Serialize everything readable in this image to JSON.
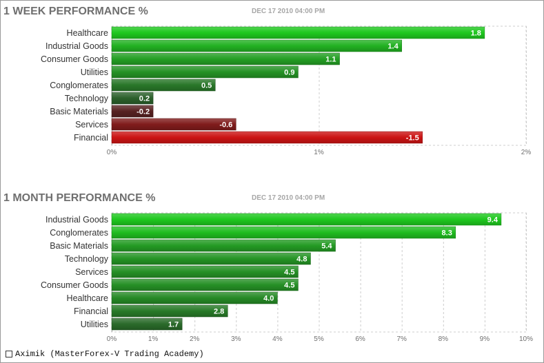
{
  "footer": {
    "credit": "Aximik (MasterForex-V Trading Academy)"
  },
  "chart_data": [
    {
      "type": "bar",
      "orientation": "horizontal",
      "title": "1 WEEK PERFORMANCE %",
      "timestamp": "DEC 17 2010 04:00 PM",
      "categories": [
        "Healthcare",
        "Industrial Goods",
        "Consumer Goods",
        "Utilities",
        "Conglomerates",
        "Technology",
        "Basic Materials",
        "Services",
        "Financial"
      ],
      "values": [
        1.8,
        1.4,
        1.1,
        0.9,
        0.5,
        0.2,
        -0.2,
        -0.6,
        -1.5
      ],
      "value_labels": [
        "1.8",
        "1.4",
        "1.1",
        "0.9",
        "0.5",
        "0.2",
        "-0.2",
        "-0.6",
        "-1.5"
      ],
      "ticks": [
        0,
        1,
        2
      ],
      "tick_labels": [
        "0%",
        "1%",
        "2%"
      ],
      "xlim": [
        0,
        2
      ],
      "grid": true,
      "colors": {
        "positive_strong": "#1fc81f",
        "positive_weak": "#2e4a2e",
        "negative_weak": "#3a2424",
        "negative_strong": "#cc1414"
      }
    },
    {
      "type": "bar",
      "orientation": "horizontal",
      "title": "1 MONTH PERFORMANCE %",
      "timestamp": "DEC 17 2010 04:00 PM",
      "categories": [
        "Industrial Goods",
        "Conglomerates",
        "Basic Materials",
        "Technology",
        "Services",
        "Consumer Goods",
        "Healthcare",
        "Financial",
        "Utilities"
      ],
      "values": [
        9.4,
        8.3,
        5.4,
        4.8,
        4.5,
        4.5,
        4.0,
        2.8,
        1.7
      ],
      "value_labels": [
        "9.4",
        "8.3",
        "5.4",
        "4.8",
        "4.5",
        "4.5",
        "4.0",
        "2.8",
        "1.7"
      ],
      "ticks": [
        0,
        1,
        2,
        3,
        4,
        5,
        6,
        7,
        8,
        9,
        10
      ],
      "tick_labels": [
        "0%",
        "1%",
        "2%",
        "3%",
        "4%",
        "5%",
        "6%",
        "7%",
        "8%",
        "9%",
        "10%"
      ],
      "xlim": [
        0,
        10
      ],
      "grid": true,
      "colors": {
        "positive_strong": "#1fc81f",
        "positive_weak": "#2e4a2e",
        "negative_weak": "#3a2424",
        "negative_strong": "#cc1414"
      }
    }
  ]
}
